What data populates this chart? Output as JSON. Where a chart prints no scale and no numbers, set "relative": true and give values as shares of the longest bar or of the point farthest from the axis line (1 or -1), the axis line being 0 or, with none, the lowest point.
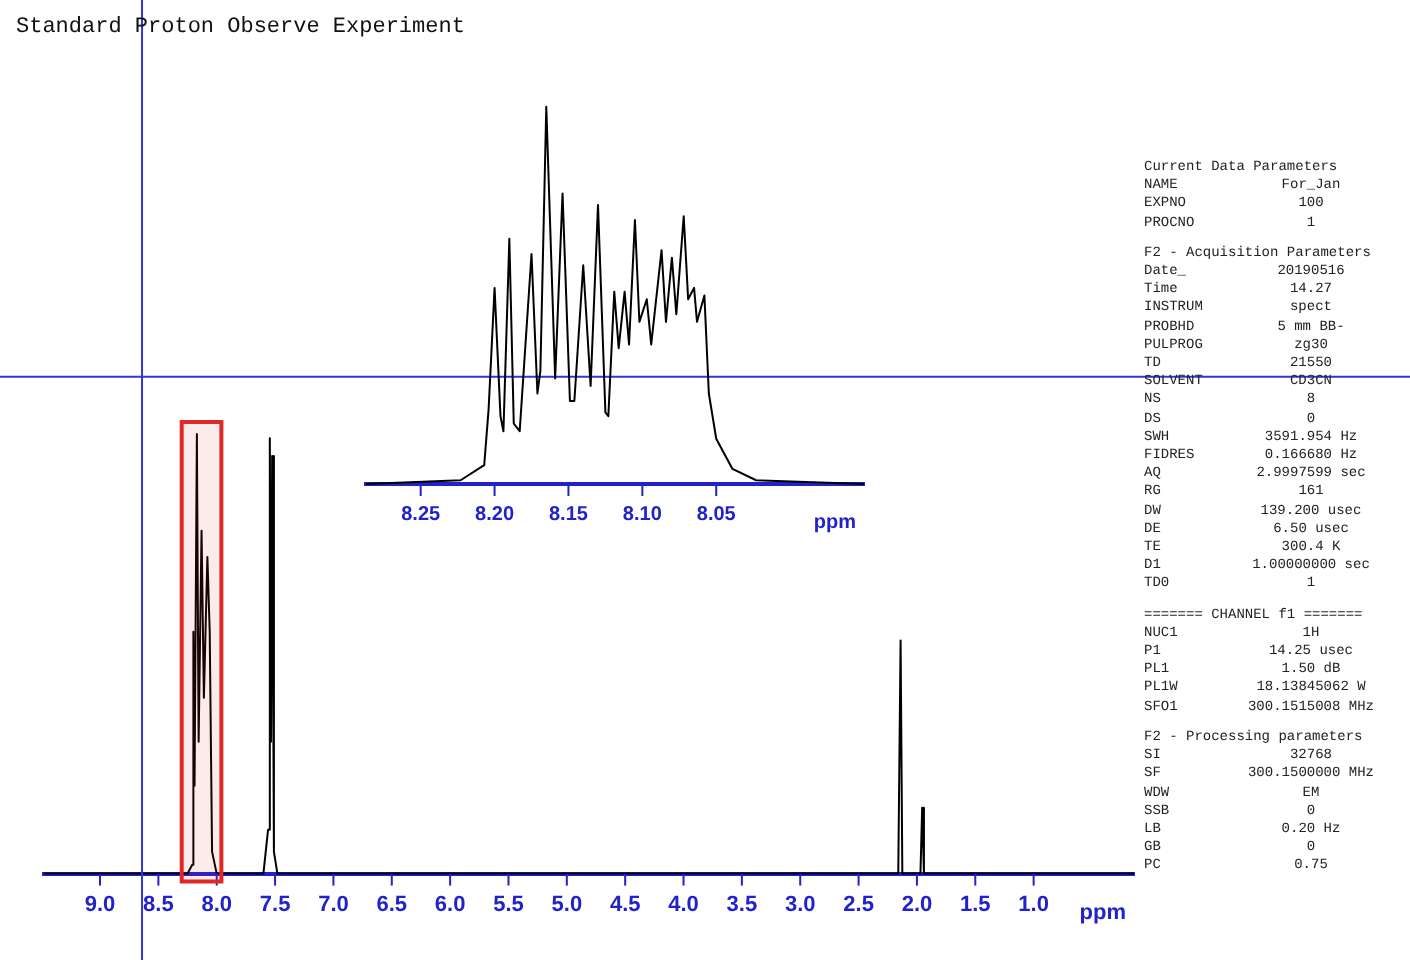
{
  "chart_data": [
    {
      "type": "line",
      "title": "Standard Proton Observe Experiment",
      "relative": true,
      "color": "#000000",
      "tick_labels": "x",
      "xlabel": "ppm",
      "x": [
        9.48,
        8.25,
        8.21,
        8.2,
        8.19,
        8.17,
        8.155,
        8.13,
        8.11,
        8.08,
        8.06,
        8.04,
        8.0,
        7.6,
        7.56,
        7.545,
        7.535,
        7.525,
        7.51,
        7.48,
        2.16,
        2.14,
        2.125,
        1.97,
        1.955,
        1.94,
        0.14
      ],
      "values": [
        0,
        0,
        0.02,
        0.55,
        0.2,
        1.0,
        0.3,
        0.78,
        0.4,
        0.72,
        0.55,
        0.05,
        0,
        0,
        0.1,
        0.99,
        0.3,
        0.95,
        0.05,
        0,
        0,
        0.53,
        0,
        0,
        0.15,
        0,
        0
      ],
      "xlim": [
        9.48,
        0.14
      ],
      "xticks": [
        {
          "value": 9.0,
          "label": "9.0"
        },
        {
          "value": 8.5,
          "label": "8.5"
        },
        {
          "value": 8.0,
          "label": "8.0"
        },
        {
          "value": 7.5,
          "label": "7.5"
        },
        {
          "value": 7.0,
          "label": "7.0"
        },
        {
          "value": 6.5,
          "label": "6.5"
        },
        {
          "value": 6.0,
          "label": "6.0"
        },
        {
          "value": 5.5,
          "label": "5.5"
        },
        {
          "value": 5.0,
          "label": "5.0"
        },
        {
          "value": 4.5,
          "label": "4.5"
        },
        {
          "value": 4.0,
          "label": "4.0"
        },
        {
          "value": 3.5,
          "label": "3.5"
        },
        {
          "value": 3.0,
          "label": "3.0"
        },
        {
          "value": 2.5,
          "label": "2.5"
        },
        {
          "value": 2.0,
          "label": "2.0"
        },
        {
          "value": 1.5,
          "label": "1.5"
        },
        {
          "value": 1.0,
          "label": "1.0"
        }
      ],
      "ref_lines": [
        {
          "axis": "x",
          "value": 8.64,
          "color": "#3434d8"
        },
        {
          "axis": "y",
          "value": 1.13,
          "color": "#3434d8"
        }
      ],
      "bands": [
        {
          "axis": "x",
          "from": 8.3,
          "to": 7.96,
          "color": "#e02828"
        }
      ]
    },
    {
      "type": "line",
      "relative": true,
      "color": "#000000",
      "tick_labels": "x",
      "xlabel": "ppm",
      "x": [
        8.287,
        8.223,
        8.207,
        8.204,
        8.2,
        8.196,
        8.194,
        8.19,
        8.187,
        8.183,
        8.175,
        8.171,
        8.169,
        8.165,
        8.159,
        8.154,
        8.149,
        8.146,
        8.14,
        8.135,
        8.13,
        8.125,
        8.123,
        8.119,
        8.116,
        8.112,
        8.109,
        8.105,
        8.102,
        8.097,
        8.094,
        8.087,
        8.084,
        8.08,
        8.077,
        8.072,
        8.069,
        8.065,
        8.063,
        8.058,
        8.055,
        8.05,
        8.039,
        8.023,
        7.95
      ],
      "values": [
        0,
        0.01,
        0.05,
        0.2,
        0.52,
        0.18,
        0.14,
        0.65,
        0.16,
        0.14,
        0.61,
        0.24,
        0.3,
        1.0,
        0.28,
        0.77,
        0.22,
        0.22,
        0.58,
        0.26,
        0.74,
        0.19,
        0.18,
        0.51,
        0.36,
        0.51,
        0.37,
        0.7,
        0.43,
        0.49,
        0.37,
        0.62,
        0.43,
        0.6,
        0.45,
        0.71,
        0.49,
        0.52,
        0.43,
        0.5,
        0.24,
        0.12,
        0.04,
        0.01,
        0
      ],
      "xlim": [
        8.287,
        7.95
      ],
      "xticks": [
        {
          "value": 8.25,
          "label": "8.25"
        },
        {
          "value": 8.2,
          "label": "8.20"
        },
        {
          "value": 8.15,
          "label": "8.15"
        },
        {
          "value": 8.1,
          "label": "8.10"
        },
        {
          "value": 8.05,
          "label": "8.05"
        }
      ]
    },
    {
      "type": "other",
      "annotations": [
        "Current Data Parameters",
        "NAME  For_Jan",
        "EXPNO  100",
        "PROCNO  1",
        "F2 - Acquisition Parameters",
        "Date_  20190516",
        "Time  14.27",
        "INSTRUM  spect",
        "PROBHD  5 mm BB-",
        "PULPROG  zg30",
        "TD  21550",
        "SOLVENT  CD3CN",
        "NS  8",
        "DS  0",
        "SWH  3591.954 Hz",
        "FIDRES  0.166680 Hz",
        "AQ  2.9997599 sec",
        "RG  161",
        "DW  139.200 usec",
        "DE  6.50 usec",
        "TE  300.4 K",
        "D1  1.00000000 sec",
        "TD0  1",
        "======= CHANNEL f1 =======",
        "NUC1  1H",
        "P1  14.25 usec",
        "PL1  1.50 dB",
        "PL1W  18.13845062 W",
        "SFO1  300.1515008 MHz",
        "F2 - Processing parameters",
        "SI  32768",
        "SF  300.1500000 MHz",
        "WDW  EM",
        "SSB  0",
        "LB  0.20 Hz",
        "GB  0",
        "PC  0.75"
      ]
    }
  ]
}
